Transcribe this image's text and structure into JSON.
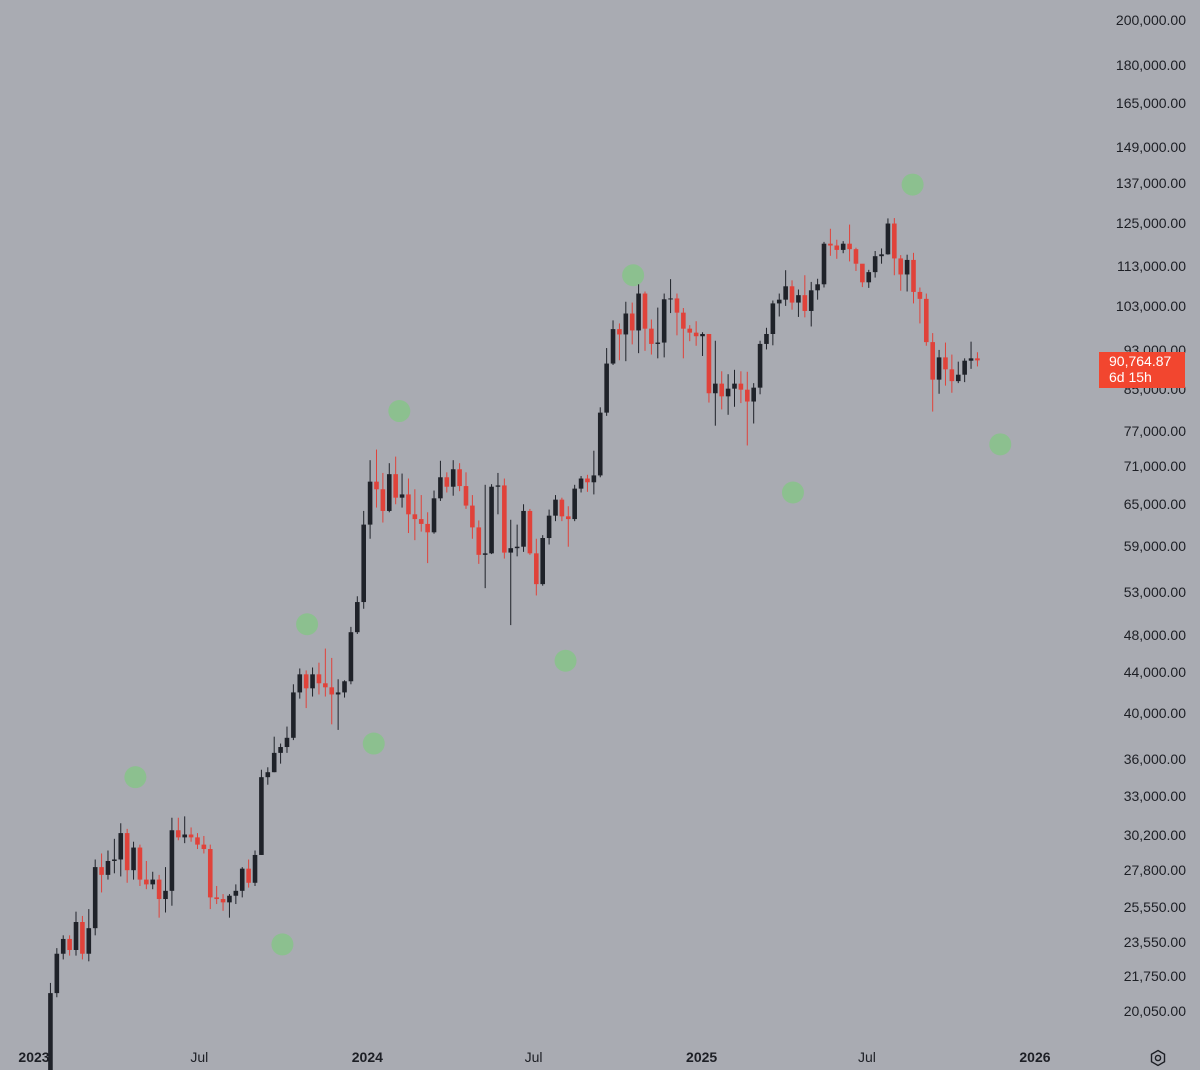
{
  "chart_data": {
    "type": "candlestick",
    "title": "",
    "xlabel": "",
    "ylabel": "",
    "y_scale": "log",
    "ylim": [
      18500,
      205000
    ],
    "xlim": [
      "2023-01-01",
      "2026-02-28"
    ],
    "grid": false,
    "colors": {
      "background": "#a9abb2",
      "up": "#1f2229",
      "down": "#e0423a",
      "marker": "#8cc08f",
      "price_label": "#f2462f"
    },
    "y_ticks": [
      "200,000.00",
      "180,000.00",
      "165,000.00",
      "149,000.00",
      "137,000.00",
      "125,000.00",
      "113,000.00",
      "103,000.00",
      "93,000.00",
      "85,000.00",
      "77,000.00",
      "71,000.00",
      "65,000.00",
      "59,000.00",
      "53,000.00",
      "48,000.00",
      "44,000.00",
      "40,000.00",
      "36,000.00",
      "33,000.00",
      "30,200.00",
      "27,800.00",
      "25,550.00",
      "23,550.00",
      "21,750.00",
      "20,050.00"
    ],
    "x_ticks": [
      {
        "label": "2023",
        "date": "2023-01-01",
        "year": true
      },
      {
        "label": "Jul",
        "date": "2023-07-01",
        "year": false
      },
      {
        "label": "2024",
        "date": "2024-01-01",
        "year": true
      },
      {
        "label": "Jul",
        "date": "2024-07-01",
        "year": false
      },
      {
        "label": "2025",
        "date": "2025-01-01",
        "year": true
      },
      {
        "label": "Jul",
        "date": "2025-07-01",
        "year": false
      },
      {
        "label": "2026",
        "date": "2026-01-01",
        "year": true
      }
    ],
    "candles_start": "2023-01-02",
    "candle_interval_days": 7,
    "ohlc": [
      [
        16700,
        16900,
        16400,
        16600
      ],
      [
        16600,
        17300,
        16500,
        17100
      ],
      [
        17100,
        21400,
        17000,
        20900
      ],
      [
        20900,
        23200,
        20700,
        22900
      ],
      [
        22900,
        23900,
        22600,
        23700
      ],
      [
        23700,
        23900,
        22800,
        23100
      ],
      [
        23100,
        25250,
        22800,
        24650
      ],
      [
        24650,
        25000,
        22600,
        22900
      ],
      [
        22900,
        25400,
        22500,
        24300
      ],
      [
        24300,
        28500,
        23900,
        28000
      ],
      [
        28000,
        28900,
        26400,
        27500
      ],
      [
        27500,
        29100,
        27200,
        28400
      ],
      [
        28400,
        29900,
        27600,
        28500
      ],
      [
        28500,
        31000,
        27400,
        30300
      ],
      [
        30300,
        30600,
        27000,
        27800
      ],
      [
        27800,
        29700,
        27200,
        29300
      ],
      [
        29300,
        29500,
        26800,
        27200
      ],
      [
        27200,
        28400,
        26600,
        26900
      ],
      [
        26900,
        27700,
        26600,
        27200
      ],
      [
        27200,
        27500,
        24900,
        26000
      ],
      [
        26000,
        28000,
        25200,
        26500
      ],
      [
        26500,
        31400,
        25600,
        30500
      ],
      [
        30500,
        31400,
        29800,
        30000
      ],
      [
        30000,
        31500,
        29600,
        30200
      ],
      [
        30200,
        30700,
        29700,
        30000
      ],
      [
        30000,
        30300,
        29200,
        29500
      ],
      [
        29500,
        30100,
        28900,
        29200
      ],
      [
        29200,
        29500,
        25400,
        26100
      ],
      [
        26100,
        26800,
        25700,
        26000
      ],
      [
        26000,
        26300,
        25300,
        25800
      ],
      [
        25800,
        26300,
        24900,
        26200
      ],
      [
        26200,
        26900,
        25700,
        26500
      ],
      [
        26500,
        28000,
        26100,
        27900
      ],
      [
        27900,
        28500,
        26700,
        27000
      ],
      [
        27000,
        29100,
        26800,
        28800
      ],
      [
        28800,
        35100,
        28800,
        34500
      ],
      [
        34500,
        35300,
        33900,
        34900
      ],
      [
        34900,
        37900,
        34900,
        36500
      ],
      [
        36500,
        37300,
        35600,
        37000
      ],
      [
        37000,
        38800,
        36500,
        37800
      ],
      [
        37800,
        42800,
        37600,
        42000
      ],
      [
        42000,
        44400,
        41400,
        43800
      ],
      [
        43800,
        44200,
        40500,
        42400
      ],
      [
        42400,
        44500,
        41600,
        43800
      ],
      [
        43800,
        45000,
        41800,
        42900
      ],
      [
        42900,
        46500,
        41600,
        42500
      ],
      [
        42500,
        45500,
        39000,
        41800
      ],
      [
        41800,
        43300,
        38500,
        42000
      ],
      [
        42000,
        43200,
        41500,
        43100
      ],
      [
        43100,
        48900,
        42800,
        48300
      ],
      [
        48300,
        52500,
        48100,
        51800
      ],
      [
        51800,
        64000,
        51000,
        62000
      ],
      [
        62000,
        72000,
        60000,
        68500
      ],
      [
        68500,
        73800,
        64500,
        67300
      ],
      [
        67300,
        69900,
        62300,
        64000
      ],
      [
        64000,
        71500,
        63800,
        69700
      ],
      [
        69700,
        72600,
        65000,
        66000
      ],
      [
        66000,
        69800,
        64500,
        66500
      ],
      [
        66500,
        69000,
        60800,
        63500
      ],
      [
        63500,
        67300,
        59800,
        62800
      ],
      [
        62800,
        66400,
        61000,
        62100
      ],
      [
        62100,
        63800,
        56700,
        60900
      ],
      [
        60900,
        67100,
        60700,
        65900
      ],
      [
        65900,
        71900,
        65500,
        69200
      ],
      [
        69200,
        70000,
        66800,
        67700
      ],
      [
        67700,
        72000,
        66300,
        70500
      ],
      [
        70500,
        71500,
        67000,
        67800
      ],
      [
        67800,
        70000,
        64300,
        64800
      ],
      [
        64800,
        66400,
        60000,
        61600
      ],
      [
        61600,
        62600,
        56600,
        57800
      ],
      [
        57800,
        68000,
        53500,
        58000
      ],
      [
        58000,
        68100,
        57900,
        67700
      ],
      [
        67700,
        69900,
        63500,
        67900
      ],
      [
        67900,
        69000,
        57300,
        58100
      ],
      [
        58100,
        62700,
        49100,
        58700
      ],
      [
        58700,
        62000,
        57600,
        58900
      ],
      [
        58900,
        65000,
        58200,
        64000
      ],
      [
        64000,
        64300,
        57800,
        58000
      ],
      [
        58000,
        60000,
        52600,
        54000
      ],
      [
        54000,
        60500,
        53800,
        60100
      ],
      [
        60100,
        64200,
        59200,
        63300
      ],
      [
        63300,
        66400,
        62500,
        65700
      ],
      [
        65700,
        66000,
        62500,
        63200
      ],
      [
        63200,
        64700,
        58900,
        62800
      ],
      [
        62800,
        68000,
        62500,
        67400
      ],
      [
        67400,
        69400,
        66800,
        69000
      ],
      [
        69000,
        69600,
        66900,
        68400
      ],
      [
        68400,
        73600,
        66500,
        69500
      ],
      [
        69500,
        81400,
        69200,
        80400
      ],
      [
        80400,
        93400,
        79800,
        90100
      ],
      [
        90100,
        99600,
        89800,
        97600
      ],
      [
        97600,
        98900,
        90800,
        96400
      ],
      [
        96400,
        104000,
        90600,
        101200
      ],
      [
        101200,
        103800,
        94200,
        97300
      ],
      [
        97300,
        108300,
        92300,
        106000
      ],
      [
        106000,
        106500,
        92800,
        97700
      ],
      [
        97700,
        99800,
        92000,
        94300
      ],
      [
        94300,
        102600,
        91200,
        94600
      ],
      [
        94600,
        106000,
        91400,
        104600
      ],
      [
        104600,
        109600,
        101300,
        104800
      ],
      [
        104800,
        106000,
        96200,
        101400
      ],
      [
        101400,
        102500,
        91200,
        97700
      ],
      [
        97700,
        98500,
        94900,
        96800
      ],
      [
        96800,
        99400,
        93900,
        96000
      ],
      [
        96000,
        96900,
        91700,
        96500
      ],
      [
        96500,
        96400,
        82300,
        84100
      ],
      [
        84100,
        95000,
        78000,
        86000
      ],
      [
        86000,
        88500,
        81000,
        83500
      ],
      [
        83500,
        87900,
        80000,
        85000
      ],
      [
        85000,
        88800,
        81500,
        86000
      ],
      [
        86000,
        88500,
        82200,
        84800
      ],
      [
        84800,
        88400,
        74500,
        82500
      ],
      [
        82500,
        86100,
        78400,
        85200
      ],
      [
        85200,
        95000,
        83900,
        94300
      ],
      [
        94300,
        97900,
        93100,
        96500
      ],
      [
        96500,
        104300,
        94000,
        103600
      ],
      [
        103600,
        106000,
        100500,
        104500
      ],
      [
        104500,
        111900,
        103000,
        107800
      ],
      [
        107800,
        109300,
        102100,
        103800
      ],
      [
        103800,
        107000,
        100400,
        105600
      ],
      [
        105600,
        110600,
        100300,
        101800
      ],
      [
        101800,
        108900,
        98200,
        106800
      ],
      [
        106800,
        109700,
        104500,
        108300
      ],
      [
        108300,
        119500,
        107500,
        119000
      ],
      [
        119000,
        123200,
        115700,
        118500
      ],
      [
        118500,
        120100,
        114900,
        117300
      ],
      [
        117300,
        119700,
        116400,
        119000
      ],
      [
        119000,
        124400,
        114200,
        117500
      ],
      [
        117500,
        117900,
        111700,
        113600
      ],
      [
        113600,
        113400,
        107600,
        108800
      ],
      [
        108800,
        112000,
        107400,
        111400
      ],
      [
        111400,
        117000,
        110000,
        115600
      ],
      [
        115600,
        117700,
        113600,
        116100
      ],
      [
        116100,
        126200,
        116000,
        124700
      ],
      [
        124700,
        126300,
        110600,
        115000
      ],
      [
        115000,
        115900,
        106700,
        110800
      ],
      [
        110800,
        116000,
        106500,
        114600
      ],
      [
        114600,
        116500,
        103600,
        106400
      ],
      [
        106400,
        107500,
        98900,
        104700
      ],
      [
        104700,
        106000,
        93900,
        94700
      ],
      [
        94700,
        96700,
        80600,
        86800
      ],
      [
        86800,
        93000,
        84000,
        91400
      ],
      [
        91400,
        94600,
        85600,
        88900
      ],
      [
        88900,
        92000,
        84200,
        86500
      ],
      [
        86500,
        90500,
        86100,
        87800
      ],
      [
        87800,
        91200,
        86300,
        90700
      ],
      [
        90700,
        94800,
        89000,
        91200
      ],
      [
        91200,
        92500,
        89500,
        90765
      ]
    ],
    "markers": [
      {
        "date": "2023-04-22",
        "value": 34500
      },
      {
        "date": "2023-09-30",
        "value": 23400
      },
      {
        "date": "2023-10-27",
        "value": 49200
      },
      {
        "date": "2024-01-08",
        "value": 37300
      },
      {
        "date": "2024-02-05",
        "value": 80700
      },
      {
        "date": "2024-08-05",
        "value": 45200
      },
      {
        "date": "2024-10-18",
        "value": 110600
      },
      {
        "date": "2025-04-11",
        "value": 66800
      },
      {
        "date": "2025-08-20",
        "value": 136500
      },
      {
        "date": "2025-11-24",
        "value": 74700
      }
    ],
    "current_price": "90,764.87",
    "countdown": "6d 15h"
  }
}
